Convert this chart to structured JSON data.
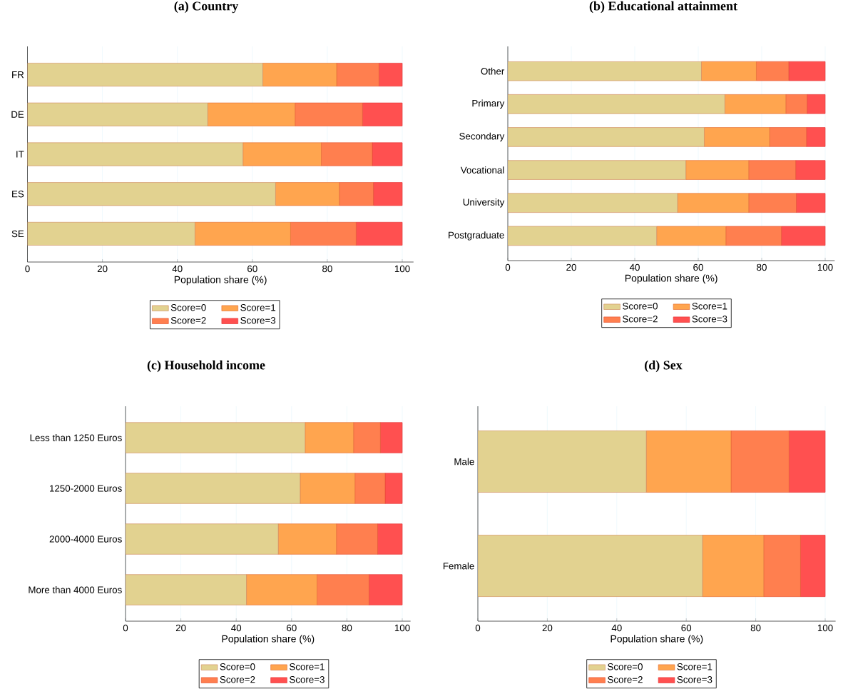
{
  "chart_data": [
    {
      "type": "bar",
      "orientation": "horizontal",
      "stacked": true,
      "title": "(a) Country",
      "xlabel": "Population share (%)",
      "categories": [
        "FR",
        "DE",
        "IT",
        "ES",
        "SE"
      ],
      "series": [
        {
          "name": "Score=0",
          "color": "#e2d290",
          "values": [
            62.8,
            48.1,
            57.5,
            66.2,
            44.7
          ]
        },
        {
          "name": "Score=1",
          "color": "#ffa54f",
          "values": [
            19.7,
            23.3,
            20.9,
            17.0,
            25.5
          ]
        },
        {
          "name": "Score=2",
          "color": "#ff7f4f",
          "values": [
            11.3,
            18.0,
            13.6,
            9.1,
            17.5
          ]
        },
        {
          "name": "Score=3",
          "color": "#ff5050",
          "values": [
            6.2,
            10.6,
            8.0,
            7.7,
            12.3
          ]
        }
      ],
      "xlim": [
        0,
        103
      ],
      "xticks": [
        0,
        20,
        40,
        60,
        80,
        100
      ],
      "grid": "x",
      "legend": "bottom"
    },
    {
      "type": "bar",
      "orientation": "horizontal",
      "stacked": true,
      "title": "(b) Educational attainment",
      "xlabel": "Population share (%)",
      "categories": [
        "Other",
        "Primary",
        "Secondary",
        "Vocational",
        "University",
        "Postgraduate"
      ],
      "series": [
        {
          "name": "Score=0",
          "color": "#e2d290",
          "values": [
            61.0,
            68.4,
            61.9,
            56.1,
            53.5,
            46.9
          ]
        },
        {
          "name": "Score=1",
          "color": "#ffa54f",
          "values": [
            17.3,
            19.2,
            20.6,
            19.8,
            22.4,
            21.8
          ]
        },
        {
          "name": "Score=2",
          "color": "#ff7f4f",
          "values": [
            10.2,
            6.7,
            11.6,
            14.8,
            15.0,
            17.5
          ]
        },
        {
          "name": "Score=3",
          "color": "#ff5050",
          "values": [
            11.5,
            5.7,
            5.9,
            9.3,
            9.1,
            13.8
          ]
        }
      ],
      "xlim": [
        0,
        103
      ],
      "xticks": [
        0,
        20,
        40,
        60,
        80,
        100
      ],
      "grid": "x",
      "legend": "bottom"
    },
    {
      "type": "bar",
      "orientation": "horizontal",
      "stacked": true,
      "title": "(c) Household income",
      "xlabel": "Population share (%)",
      "categories": [
        "Less than 1250 Euros",
        "1250-2000 Euros",
        "2000-4000 Euros",
        "More than 4000 Euros"
      ],
      "series": [
        {
          "name": "Score=0",
          "color": "#e2d290",
          "values": [
            64.9,
            63.1,
            55.2,
            43.7
          ]
        },
        {
          "name": "Score=1",
          "color": "#ffa54f",
          "values": [
            17.5,
            19.8,
            21.0,
            25.5
          ]
        },
        {
          "name": "Score=2",
          "color": "#ff7f4f",
          "values": [
            9.7,
            10.9,
            14.9,
            18.8
          ]
        },
        {
          "name": "Score=3",
          "color": "#ff5050",
          "values": [
            7.9,
            6.2,
            8.9,
            12.0
          ]
        }
      ],
      "xlim": [
        0,
        103
      ],
      "xticks": [
        0,
        20,
        40,
        60,
        80,
        100
      ],
      "grid": "x",
      "legend": "bottom"
    },
    {
      "type": "bar",
      "orientation": "horizontal",
      "stacked": true,
      "title": "(d) Sex",
      "xlabel": "Population share (%)",
      "categories": [
        "Male",
        "Female"
      ],
      "series": [
        {
          "name": "Score=0",
          "color": "#e2d290",
          "values": [
            48.5,
            64.7
          ]
        },
        {
          "name": "Score=1",
          "color": "#ffa54f",
          "values": [
            24.4,
            17.6
          ]
        },
        {
          "name": "Score=2",
          "color": "#ff7f4f",
          "values": [
            16.7,
            10.6
          ]
        },
        {
          "name": "Score=3",
          "color": "#ff5050",
          "values": [
            10.4,
            7.1
          ]
        }
      ],
      "xlim": [
        0,
        103
      ],
      "xticks": [
        0,
        20,
        40,
        60,
        80,
        100
      ],
      "grid": "x",
      "legend": "bottom"
    }
  ]
}
